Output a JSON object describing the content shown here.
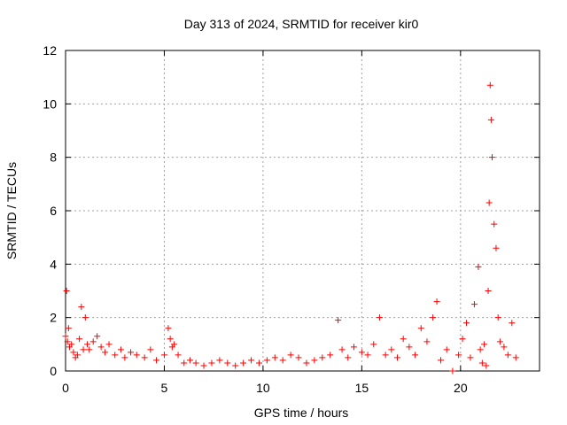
{
  "chart_data": {
    "type": "scatter",
    "title": "Day 313 of 2024, SRMTID for receiver kir0",
    "xlabel": "GPS time / hours",
    "ylabel": "SRMTID / TECUs",
    "xlim": [
      0,
      24
    ],
    "ylim": [
      0,
      12
    ],
    "xticks": [
      0,
      5,
      10,
      15,
      20
    ],
    "xtick_labels": [
      "0",
      "5",
      "10",
      "15",
      "20"
    ],
    "yticks": [
      0,
      2,
      4,
      6,
      8,
      10,
      12
    ],
    "ytick_labels": [
      "0",
      "2",
      "4",
      "6",
      "8",
      "10",
      "12"
    ],
    "grid": true,
    "marker": "+",
    "color": "#ff0000",
    "series": [
      {
        "name": "SRMTID",
        "x": [
          0.0,
          0.05,
          0.1,
          0.15,
          0.2,
          0.3,
          0.4,
          0.5,
          0.6,
          0.7,
          0.8,
          0.9,
          1.0,
          1.1,
          1.2,
          1.4,
          1.6,
          1.8,
          2.0,
          2.2,
          2.5,
          2.8,
          3.0,
          3.3,
          3.6,
          4.0,
          4.3,
          4.6,
          5.0,
          5.2,
          5.3,
          5.4,
          5.5,
          5.7,
          6.0,
          6.3,
          6.6,
          7.0,
          7.4,
          7.8,
          8.2,
          8.6,
          9.0,
          9.4,
          9.8,
          10.2,
          10.6,
          11.0,
          11.4,
          11.8,
          12.2,
          12.6,
          13.0,
          13.4,
          13.8,
          14.0,
          14.3,
          14.6,
          15.0,
          15.3,
          15.6,
          15.9,
          16.2,
          16.5,
          16.8,
          17.1,
          17.4,
          17.7,
          18.0,
          18.3,
          18.6,
          18.8,
          19.0,
          19.3,
          19.6,
          19.9,
          20.1,
          20.3,
          20.5,
          20.7,
          20.9,
          21.0,
          21.1,
          21.2,
          21.3,
          21.4,
          21.45,
          21.5,
          21.55,
          21.6,
          21.7,
          21.8,
          21.9,
          22.0,
          22.2,
          22.4,
          22.6,
          22.8
        ],
        "y": [
          1.3,
          3.0,
          1.1,
          1.6,
          0.9,
          1.0,
          0.7,
          0.5,
          0.6,
          1.2,
          2.4,
          0.8,
          2.0,
          1.0,
          0.8,
          1.1,
          1.3,
          0.9,
          0.7,
          1.0,
          0.6,
          0.8,
          0.5,
          0.7,
          0.6,
          0.5,
          0.8,
          0.4,
          0.6,
          1.6,
          1.2,
          0.9,
          1.0,
          0.6,
          0.3,
          0.4,
          0.3,
          0.2,
          0.3,
          0.4,
          0.3,
          0.2,
          0.3,
          0.4,
          0.3,
          0.4,
          0.5,
          0.4,
          0.6,
          0.5,
          0.3,
          0.4,
          0.5,
          0.6,
          1.9,
          0.8,
          0.5,
          0.9,
          0.7,
          0.6,
          1.0,
          2.0,
          0.6,
          0.8,
          0.5,
          1.2,
          0.9,
          0.6,
          1.6,
          1.1,
          2.0,
          2.6,
          0.4,
          0.8,
          0.0,
          0.6,
          1.2,
          1.8,
          0.5,
          2.5,
          3.9,
          0.8,
          0.3,
          1.0,
          0.2,
          3.0,
          6.3,
          10.7,
          9.4,
          8.0,
          5.5,
          4.6,
          2.0,
          1.1,
          0.9,
          0.6,
          1.8,
          0.5
        ]
      }
    ]
  }
}
